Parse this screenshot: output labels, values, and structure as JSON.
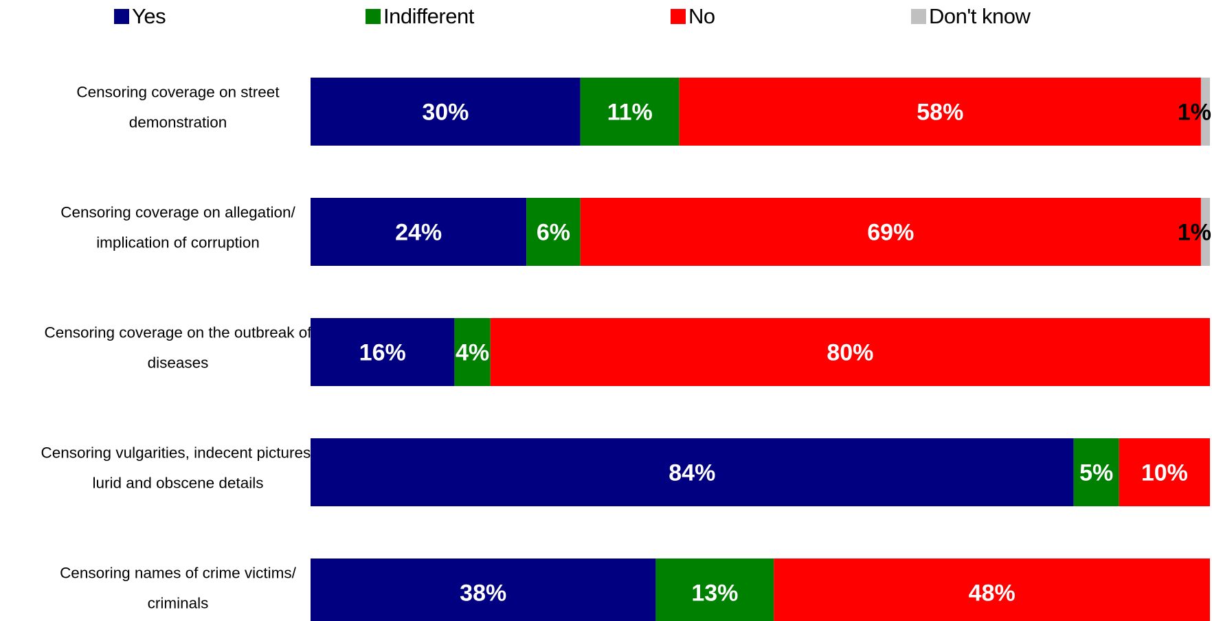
{
  "chart_data": {
    "type": "bar",
    "orientation": "horizontal",
    "stacked": true,
    "categories": [
      "Censoring coverage on street demonstration",
      "Censoring coverage on allegation/ implication of corruption",
      "Censoring coverage on the outbreak of diseases",
      "Censoring vulgarities, indecent pictures, lurid and obscene details",
      "Censoring names of crime victims/ criminals"
    ],
    "category_lines": [
      [
        "Censoring coverage on street",
        "demonstration"
      ],
      [
        "Censoring coverage on allegation/",
        "implication of corruption"
      ],
      [
        "Censoring coverage on the outbreak of",
        "diseases"
      ],
      [
        "Censoring vulgarities, indecent pictures,",
        "lurid and obscene details"
      ],
      [
        "Censoring names of crime victims/",
        "criminals"
      ]
    ],
    "series": [
      {
        "name": "Yes",
        "color": "#000080",
        "values": [
          30,
          24,
          16,
          84,
          38
        ],
        "labels": [
          "30%",
          "24%",
          "16%",
          "84%",
          "38%"
        ],
        "label_color": "#ffffff"
      },
      {
        "name": "Indifferent",
        "color": "#008000",
        "values": [
          11,
          6,
          4,
          5,
          13
        ],
        "labels": [
          "11%",
          "6%",
          "4%",
          "5%",
          "13%"
        ],
        "label_color": "#ffffff"
      },
      {
        "name": "No",
        "color": "#ff0000",
        "values": [
          58,
          69,
          80,
          10,
          48
        ],
        "labels": [
          "58%",
          "69%",
          "80%",
          "10%",
          "48%"
        ],
        "label_color": "#ffffff"
      },
      {
        "name": "Don't know",
        "color": "#c0c0c0",
        "values": [
          1,
          1,
          0,
          0,
          0
        ],
        "labels": [
          "1%",
          "1%",
          "",
          "",
          ""
        ],
        "label_color": "#000000"
      }
    ],
    "xlim": [
      0,
      100
    ],
    "legend_position": "top",
    "grid": false,
    "title": "",
    "xlabel": "",
    "ylabel": ""
  }
}
